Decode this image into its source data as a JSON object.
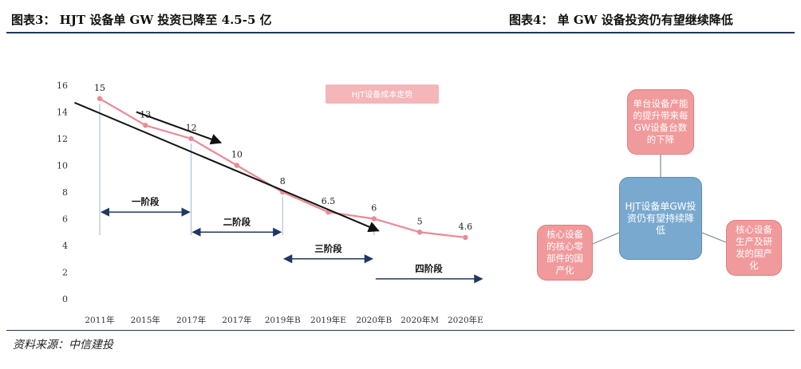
{
  "header": {
    "left_title": "图表3： HJT 设备单 GW 投资已降至 4.5-5 亿",
    "right_title": "图表4： 单 GW 设备投资仍有望继续降低"
  },
  "footer": {
    "source": "资料来源：中信建投"
  },
  "chart_data": {
    "type": "line",
    "legend": "HJT设备成本走势",
    "legend_placement": "top-center",
    "categories": [
      "2011年",
      "2015年",
      "2017年",
      "2017年",
      "2019年B",
      "2019年E",
      "2020年B",
      "2020年M",
      "2020年E"
    ],
    "series": [
      {
        "values": [
          15,
          13,
          12,
          10,
          8,
          6.5,
          6,
          5,
          4.6
        ],
        "labels": [
          "15",
          "13",
          "12",
          "10",
          "8",
          "6.5",
          "6",
          "5",
          "4.6"
        ],
        "color": "#e98a94"
      }
    ],
    "ylim": [
      0,
      16
    ],
    "yticks": [
      "0",
      "2",
      "4",
      "6",
      "8",
      "10",
      "12",
      "14",
      "16"
    ],
    "grid": false,
    "trend_lines": [
      {
        "from": [
          -0.55,
          14.7
        ],
        "to": [
          6.1,
          5.1
        ]
      },
      {
        "from": [
          0.8,
          14.0
        ],
        "to": [
          2.65,
          11.7
        ]
      }
    ],
    "stages": [
      {
        "label": "一阶段",
        "from": 0,
        "to": 2,
        "y": 6.5,
        "arrow": "both"
      },
      {
        "label": "二阶段",
        "from": 2,
        "to": 4,
        "y": 5.0,
        "arrow": "both"
      },
      {
        "label": "三阶段",
        "from": 4,
        "to": 6,
        "y": 3.0,
        "arrow": "both"
      },
      {
        "label": "四阶段",
        "from": 6,
        "to": 8.4,
        "y": 1.5,
        "arrow": "right"
      }
    ],
    "stage_markers": [
      0,
      2,
      4,
      6
    ]
  },
  "diagram": {
    "center": "HJT设备单GW投资仍有望持续降低",
    "top": "单台设备产能的提升带来每GW设备台数的下降",
    "left": "核心设备的核心零部件的国产化",
    "right": "核心设备生产及研发的国产化",
    "colors": {
      "outer": "#f19a9c",
      "center": "#7aa9cf",
      "connector": "#7a8a99"
    }
  }
}
